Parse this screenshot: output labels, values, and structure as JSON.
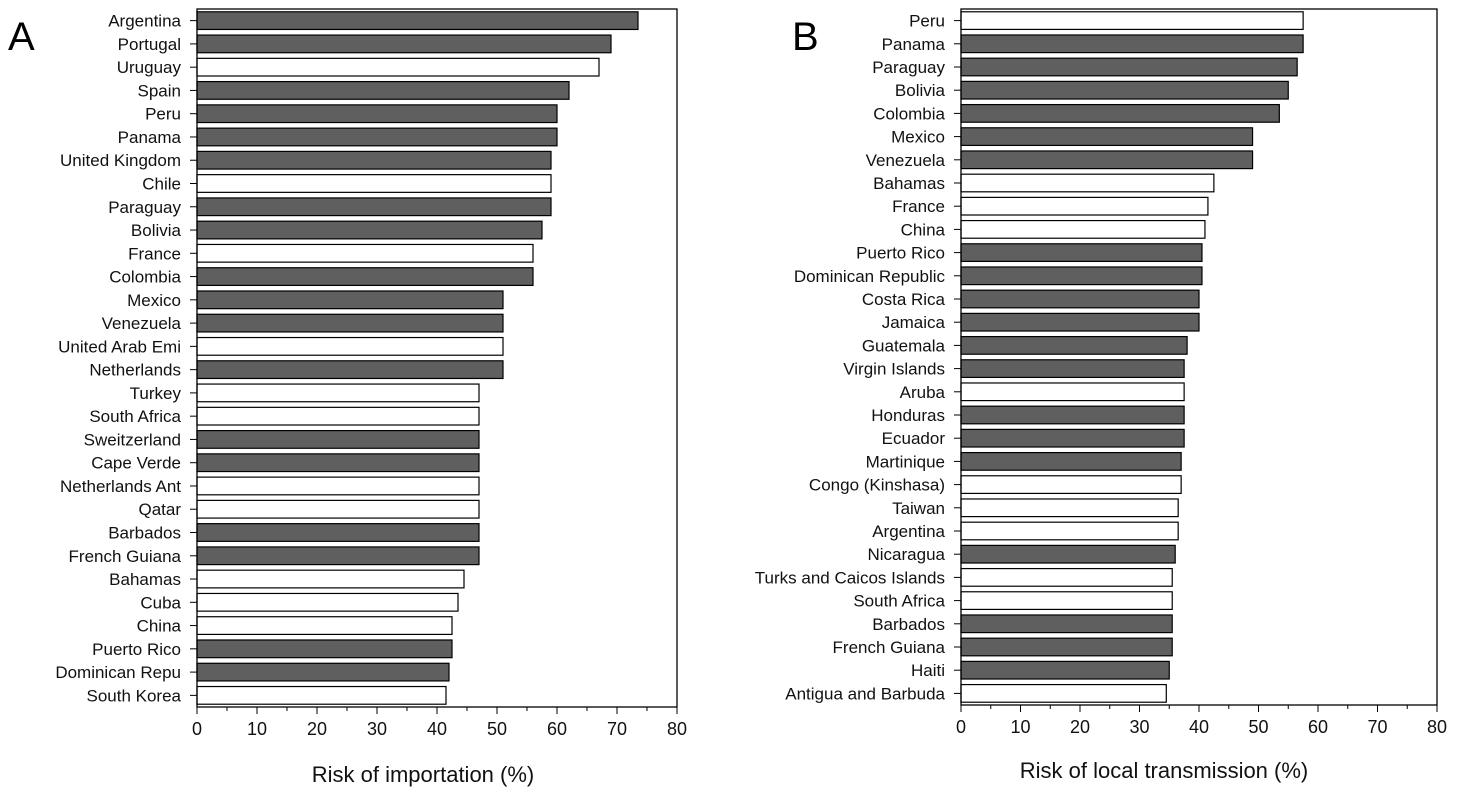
{
  "chart_data": [
    {
      "type": "bar",
      "orientation": "horizontal",
      "panel_label": "A",
      "xlabel": "Risk of importation (%)",
      "xlim": [
        0,
        80
      ],
      "xticks": [
        "0",
        "10",
        "20",
        "30",
        "40",
        "50",
        "60",
        "70",
        "80"
      ],
      "colors": {
        "filled": "#5f5f5f",
        "open": "#ffffff",
        "edge": "#000000"
      },
      "categories": [
        "Argentina",
        "Portugal",
        "Uruguay",
        "Spain",
        "Peru",
        "Panama",
        "United Kingdom",
        "Chile",
        "Paraguay",
        "Bolivia",
        "France",
        "Colombia",
        "Mexico",
        "Venezuela",
        "United Arab Emi",
        "Netherlands",
        "Turkey",
        "South Africa",
        "Sweitzerland",
        "Cape Verde",
        "Netherlands Ant",
        "Qatar",
        "Barbados",
        "French Guiana",
        "Bahamas",
        "Cuba",
        "China",
        "Puerto Rico",
        "Dominican Repu",
        "South Korea"
      ],
      "values": [
        73.5,
        69,
        67,
        62,
        60,
        60,
        59,
        59,
        59,
        57.5,
        56,
        56,
        51,
        51,
        51,
        51,
        47,
        47,
        47,
        47,
        47,
        47,
        47,
        47,
        44.5,
        43.5,
        42.5,
        42.5,
        42,
        41.5
      ],
      "filled": [
        true,
        true,
        false,
        true,
        true,
        true,
        true,
        false,
        true,
        true,
        false,
        true,
        true,
        true,
        false,
        true,
        false,
        false,
        true,
        true,
        false,
        false,
        true,
        true,
        false,
        false,
        false,
        true,
        true,
        false
      ]
    },
    {
      "type": "bar",
      "orientation": "horizontal",
      "panel_label": "B",
      "xlabel": "Risk of local transmission (%)",
      "xlim": [
        0,
        80
      ],
      "xticks": [
        "0",
        "10",
        "20",
        "30",
        "40",
        "50",
        "60",
        "70",
        "80"
      ],
      "colors": {
        "filled": "#5f5f5f",
        "open": "#ffffff",
        "edge": "#000000"
      },
      "categories": [
        "Peru",
        "Panama",
        "Paraguay",
        "Bolivia",
        "Colombia",
        "Mexico",
        "Venezuela",
        "Bahamas",
        "France",
        "China",
        "Puerto Rico",
        "Dominican Republic",
        "Costa Rica",
        "Jamaica",
        "Guatemala",
        "Virgin Islands",
        "Aruba",
        "Honduras",
        "Ecuador",
        "Martinique",
        "Congo (Kinshasa)",
        "Taiwan",
        "Argentina",
        "Nicaragua",
        "Turks and Caicos Islands",
        "South Africa",
        "Barbados",
        "French Guiana",
        "Haiti",
        "Antigua and Barbuda"
      ],
      "values": [
        57.5,
        57.5,
        56.5,
        55,
        53.5,
        49,
        49,
        42.5,
        41.5,
        41,
        40.5,
        40.5,
        40,
        40,
        38,
        37.5,
        37.5,
        37.5,
        37.5,
        37,
        37,
        36.5,
        36.5,
        36,
        35.5,
        35.5,
        35.5,
        35.5,
        35,
        34.5
      ],
      "filled": [
        false,
        true,
        true,
        true,
        true,
        true,
        true,
        false,
        false,
        false,
        true,
        true,
        true,
        true,
        true,
        true,
        false,
        true,
        true,
        true,
        false,
        false,
        false,
        true,
        false,
        false,
        true,
        true,
        true,
        false
      ]
    }
  ]
}
